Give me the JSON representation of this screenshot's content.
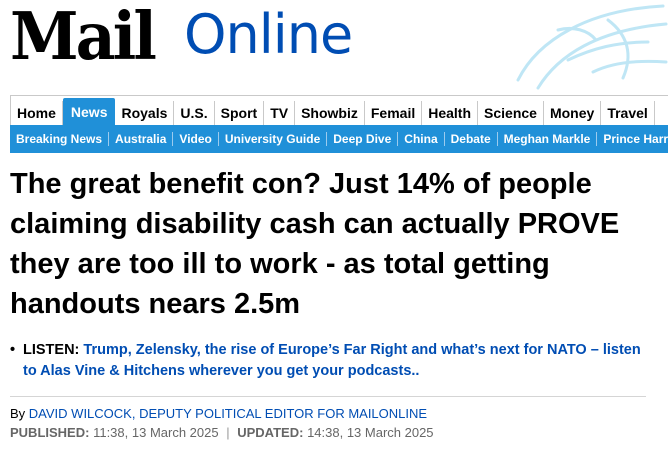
{
  "brand": {
    "logo_primary": "Mail",
    "logo_secondary": "Online",
    "color_primary": "#000000",
    "color_secondary": "#004db3",
    "accent": "#2090d8"
  },
  "nav": {
    "primary": [
      {
        "label": "Home"
      },
      {
        "label": "News",
        "active": true
      },
      {
        "label": "Royals"
      },
      {
        "label": "U.S."
      },
      {
        "label": "Sport"
      },
      {
        "label": "TV"
      },
      {
        "label": "Showbiz"
      },
      {
        "label": "Femail"
      },
      {
        "label": "Health"
      },
      {
        "label": "Science"
      },
      {
        "label": "Money"
      },
      {
        "label": "Travel"
      }
    ],
    "secondary": [
      {
        "label": "Breaking News"
      },
      {
        "label": "Australia"
      },
      {
        "label": "Video"
      },
      {
        "label": "University Guide"
      },
      {
        "label": "Deep Dive"
      },
      {
        "label": "China"
      },
      {
        "label": "Debate"
      },
      {
        "label": "Meghan Markle"
      },
      {
        "label": "Prince Harry"
      }
    ]
  },
  "article": {
    "headline": "The great benefit con? Just 14% of people claiming disability cash can actually PROVE they are too ill to work - as total getting handouts nears 2.5m",
    "bullet_label": "LISTEN:",
    "bullet_link": "Trump, Zelensky, the rise of Europe’s Far Right and what’s next for NATO – listen to Alas Vine & Hitchens wherever you get your podcasts..",
    "byline_prefix": "By",
    "author": "DAVID WILCOCK, DEPUTY POLITICAL EDITOR FOR MAILONLINE",
    "published_label": "PUBLISHED:",
    "published": "11:38, 13 March 2025",
    "separator": "|",
    "updated_label": "UPDATED:",
    "updated": "14:38, 13 March 2025"
  }
}
